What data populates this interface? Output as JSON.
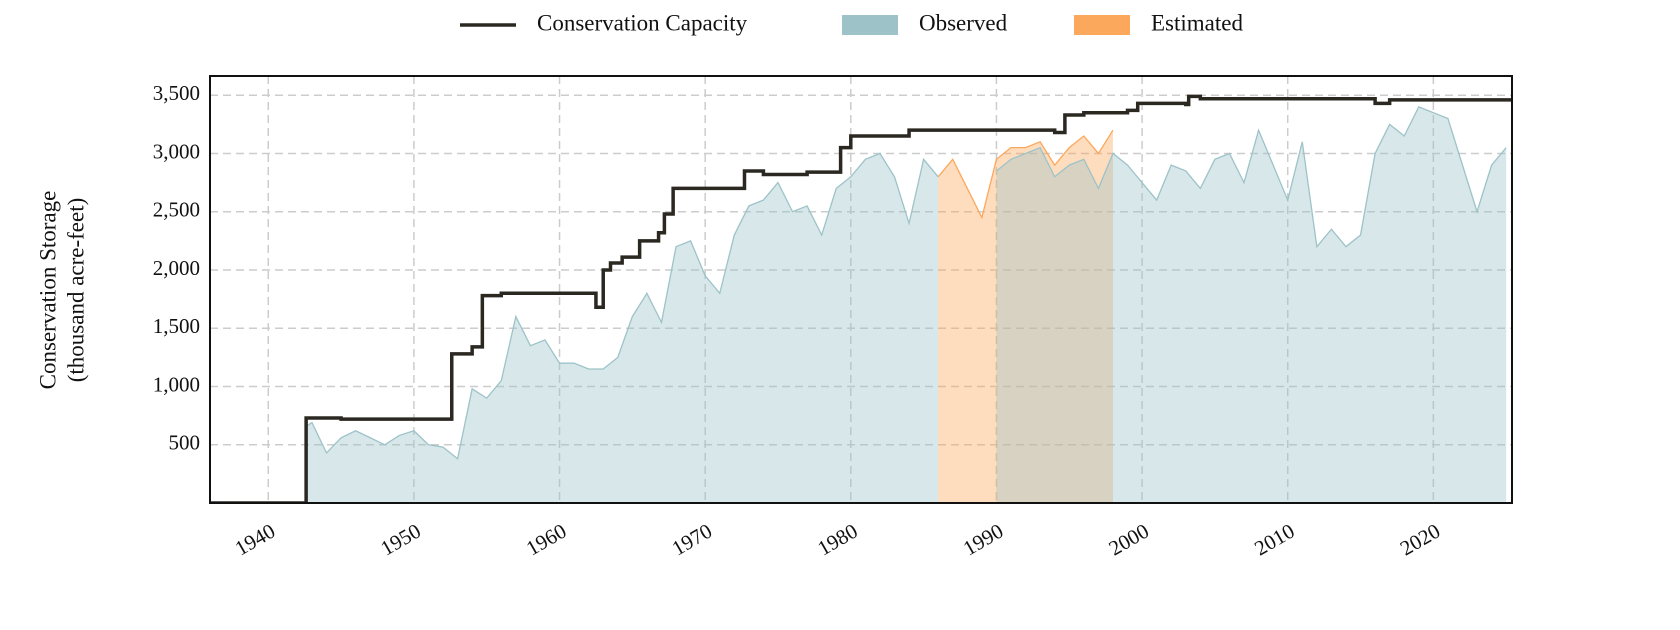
{
  "chart_data": {
    "type": "area",
    "y_label": [
      "Conservation Storage",
      "(thousand acre-feet)"
    ],
    "xlim": [
      1936,
      2025.4
    ],
    "xticks": [
      1940,
      1950,
      1960,
      1970,
      1980,
      1990,
      2000,
      2010,
      2020
    ],
    "ylim": [
      0,
      3665
    ],
    "yticks": [
      500,
      {
        "value": 1000,
        "label": "1,000"
      },
      {
        "value": 1500,
        "label": "1,500"
      },
      {
        "value": 2000,
        "label": "2,000"
      },
      {
        "value": 2500,
        "label": "2,500"
      },
      {
        "value": 3000,
        "label": "3,000"
      },
      {
        "value": 3500,
        "label": "3,500"
      }
    ],
    "grid": true,
    "legend": "top",
    "series": [
      {
        "name": "Conservation Capacity",
        "kind": "step",
        "color": "#2b2822",
        "x": [
          1936,
          1942.6,
          1945,
          1952.6,
          1954,
          1954.7,
          1956,
          1962.5,
          1963,
          1963.5,
          1964.3,
          1965.5,
          1966.8,
          1967.2,
          1967.8,
          1972.7,
          1974,
          1977,
          1979.3,
          1980,
          1984,
          1994,
          1994.7,
          1996,
          1999,
          1999.7,
          2003,
          2003.2,
          2004,
          2016,
          2017,
          2025.4
        ],
        "values": [
          0,
          730,
          720,
          1280,
          1340,
          1780,
          1800,
          1680,
          2000,
          2060,
          2110,
          2250,
          2320,
          2480,
          2700,
          2850,
          2820,
          2840,
          3050,
          3150,
          3200,
          3180,
          3330,
          3350,
          3370,
          3430,
          3420,
          3490,
          3470,
          3430,
          3460,
          3450
        ]
      },
      {
        "name": "Estimated",
        "kind": "area",
        "color": "#fca85c",
        "x": [
          1942.5,
          1943,
          1944,
          1945,
          1946,
          1947,
          1948,
          1949,
          1950,
          1951,
          1952,
          1953,
          1954,
          1955,
          1956,
          1957,
          1958,
          1959,
          1960,
          1961,
          1962,
          1963,
          1964,
          1965,
          1966,
          1967,
          1968,
          1969,
          1970,
          1971,
          1972,
          1973,
          1974,
          1975,
          1976,
          1977,
          1978,
          1979,
          1980,
          1981,
          1982,
          1983,
          1984,
          1985,
          1986,
          1987,
          1988,
          1989,
          1990,
          1991,
          1992,
          1993,
          1994,
          1995,
          1996,
          1997,
          1998,
          1999,
          2000,
          2001,
          2002,
          2003,
          2004,
          2005,
          2006,
          2007,
          2008,
          2009,
          2010,
          2011,
          2012,
          2013,
          2014,
          2015,
          2016,
          2017,
          2018,
          2019,
          2020,
          2021,
          2022,
          2023,
          2024,
          2025
        ],
        "values": [
          null,
          null,
          null,
          null,
          null,
          null,
          null,
          null,
          null,
          null,
          null,
          null,
          null,
          null,
          null,
          null,
          null,
          null,
          null,
          null,
          null,
          null,
          null,
          null,
          null,
          null,
          null,
          null,
          null,
          null,
          null,
          null,
          null,
          null,
          null,
          null,
          null,
          null,
          null,
          null,
          null,
          null,
          null,
          null,
          2800,
          2950,
          2700,
          2450,
          2950,
          3050,
          3050,
          3100,
          2900,
          3050,
          3150,
          3000,
          3200,
          null,
          null,
          null,
          null,
          null,
          null,
          null,
          null,
          null,
          null,
          null,
          null,
          null,
          null,
          null,
          null,
          null,
          null,
          null,
          null,
          null,
          null,
          null,
          null,
          null,
          null,
          null
        ]
      },
      {
        "name": "Observed",
        "kind": "area",
        "color": "#9dc3c9",
        "x": [
          1942.5,
          1943,
          1944,
          1945,
          1946,
          1947,
          1948,
          1949,
          1950,
          1951,
          1952,
          1953,
          1954,
          1955,
          1956,
          1957,
          1958,
          1959,
          1960,
          1961,
          1962,
          1963,
          1964,
          1965,
          1966,
          1967,
          1968,
          1969,
          1970,
          1971,
          1972,
          1973,
          1974,
          1975,
          1976,
          1977,
          1978,
          1979,
          1980,
          1981,
          1982,
          1983,
          1984,
          1985,
          1986,
          1987,
          1988,
          1989,
          1990,
          1991,
          1992,
          1993,
          1994,
          1995,
          1996,
          1997,
          1998,
          1999,
          2000,
          2001,
          2002,
          2003,
          2004,
          2005,
          2006,
          2007,
          2008,
          2009,
          2010,
          2011,
          2012,
          2013,
          2014,
          2015,
          2016,
          2017,
          2018,
          2019,
          2020,
          2021,
          2022,
          2023,
          2024,
          2025
        ],
        "values": [
          650,
          690,
          430,
          560,
          620,
          560,
          500,
          580,
          620,
          500,
          480,
          380,
          980,
          900,
          1050,
          1600,
          1350,
          1400,
          1200,
          1200,
          1150,
          1150,
          1250,
          1600,
          1800,
          1550,
          2200,
          2250,
          1950,
          1800,
          2300,
          2550,
          2600,
          2750,
          2500,
          2550,
          2300,
          2700,
          2800,
          2950,
          3000,
          2800,
          2400,
          2950,
          2800,
          null,
          null,
          null,
          2850,
          2950,
          3000,
          3050,
          2800,
          2900,
          2950,
          2700,
          3000,
          2900,
          2750,
          2600,
          2900,
          2850,
          2700,
          2950,
          3000,
          2750,
          3200,
          2900,
          2600,
          3100,
          2200,
          2350,
          2200,
          2300,
          3000,
          3250,
          3150,
          3400,
          3350,
          3300,
          2900,
          2500,
          2900,
          3050
        ]
      }
    ]
  }
}
